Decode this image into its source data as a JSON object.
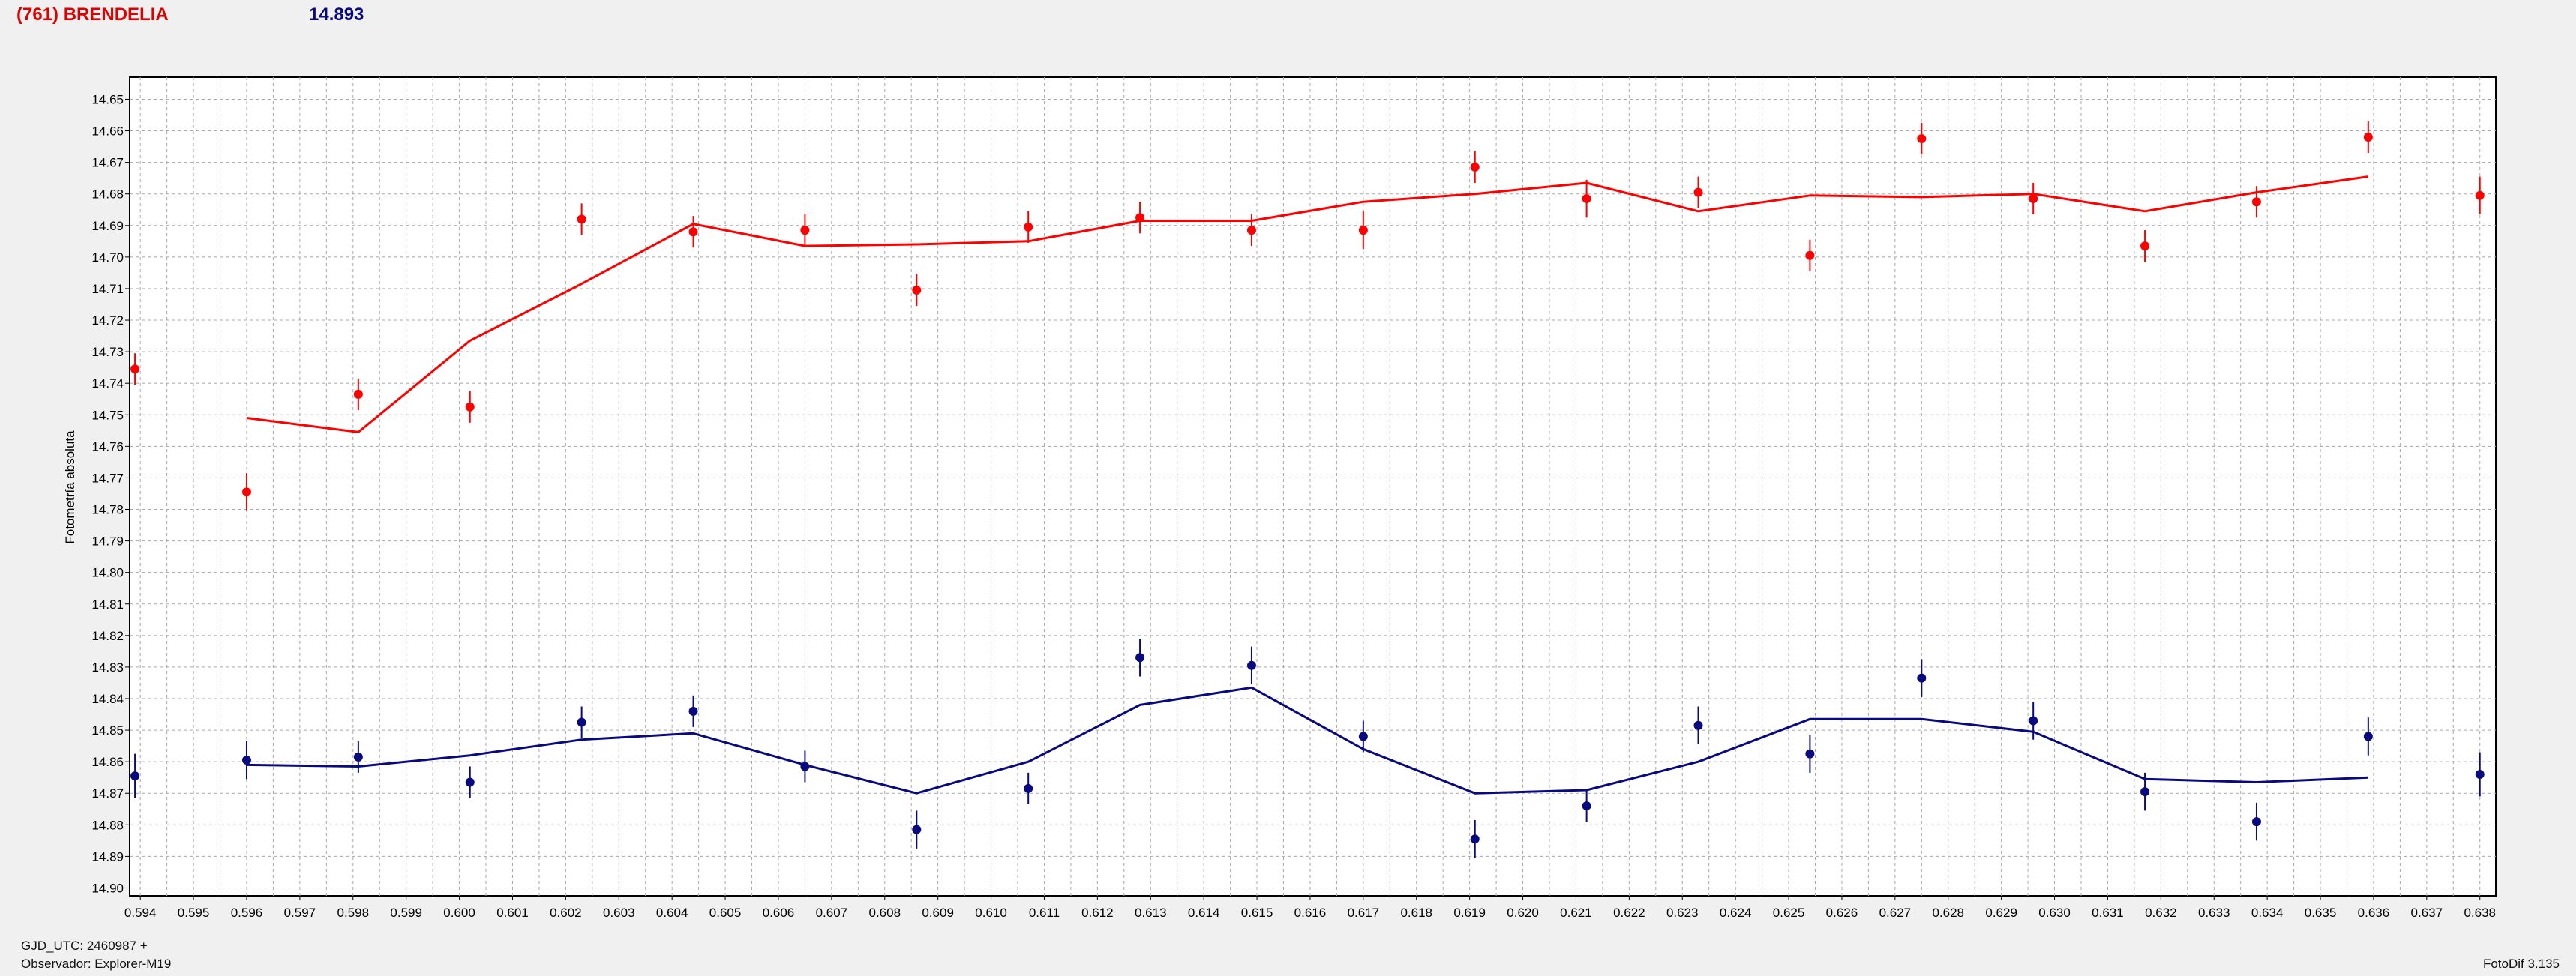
{
  "header": {
    "object_name": "(761) BRENDELIA",
    "object_color": "#e00000",
    "reference_mag": "14.893",
    "reference_color": "#0a0a80"
  },
  "footer": {
    "gjd": "GJD_UTC: 2460987 +",
    "observer": "Observador: Explorer-M19",
    "software": "FotoDif 3.135"
  },
  "chart_data": {
    "type": "scatter",
    "ylabel": "Fotometría absoluta",
    "xlabel": "",
    "xlim": [
      0.5938,
      0.6383
    ],
    "ylim": [
      14.643,
      14.9025
    ],
    "y_inverted": true,
    "grid": true,
    "x_ticks": [
      "0.594",
      "0.595",
      "0.596",
      "0.597",
      "0.598",
      "0.599",
      "0.600",
      "0.601",
      "0.602",
      "0.603",
      "0.604",
      "0.605",
      "0.606",
      "0.607",
      "0.608",
      "0.609",
      "0.610",
      "0.611",
      "0.612",
      "0.613",
      "0.614",
      "0.615",
      "0.616",
      "0.617",
      "0.618",
      "0.619",
      "0.620",
      "0.621",
      "0.622",
      "0.623",
      "0.624",
      "0.625",
      "0.626",
      "0.627",
      "0.628",
      "0.629",
      "0.630",
      "0.631",
      "0.632",
      "0.633",
      "0.634",
      "0.635",
      "0.636",
      "0.637",
      "0.638"
    ],
    "y_ticks": [
      "14.65",
      "14.66",
      "14.67",
      "14.68",
      "14.69",
      "14.70",
      "14.71",
      "14.72",
      "14.73",
      "14.74",
      "14.75",
      "14.76",
      "14.77",
      "14.78",
      "14.79",
      "14.80",
      "14.81",
      "14.82",
      "14.83",
      "14.84",
      "14.85",
      "14.86",
      "14.87",
      "14.88",
      "14.89",
      "14.90"
    ],
    "series": [
      {
        "color": "#ff0000",
        "points": [
          {
            "x": 0.5939,
            "y": 14.7355,
            "err": 0.005
          },
          {
            "x": 0.596,
            "y": 14.7745,
            "err": 0.006
          },
          {
            "x": 0.5981,
            "y": 14.7435,
            "err": 0.005
          },
          {
            "x": 0.6002,
            "y": 14.7475,
            "err": 0.005
          },
          {
            "x": 0.6023,
            "y": 14.688,
            "err": 0.005
          },
          {
            "x": 0.6044,
            "y": 14.692,
            "err": 0.005
          },
          {
            "x": 0.6065,
            "y": 14.6915,
            "err": 0.005
          },
          {
            "x": 0.6086,
            "y": 14.7105,
            "err": 0.005
          },
          {
            "x": 0.6107,
            "y": 14.6905,
            "err": 0.005
          },
          {
            "x": 0.6128,
            "y": 14.6875,
            "err": 0.005
          },
          {
            "x": 0.6149,
            "y": 14.6915,
            "err": 0.005
          },
          {
            "x": 0.617,
            "y": 14.6915,
            "err": 0.006
          },
          {
            "x": 0.6191,
            "y": 14.6715,
            "err": 0.005
          },
          {
            "x": 0.6212,
            "y": 14.6815,
            "err": 0.006
          },
          {
            "x": 0.6233,
            "y": 14.6795,
            "err": 0.005
          },
          {
            "x": 0.6254,
            "y": 14.6995,
            "err": 0.005
          },
          {
            "x": 0.6275,
            "y": 14.6625,
            "err": 0.005
          },
          {
            "x": 0.6296,
            "y": 14.6815,
            "err": 0.005
          },
          {
            "x": 0.6317,
            "y": 14.6965,
            "err": 0.005
          },
          {
            "x": 0.6338,
            "y": 14.6825,
            "err": 0.005
          },
          {
            "x": 0.6359,
            "y": 14.662,
            "err": 0.005
          },
          {
            "x": 0.638,
            "y": 14.6805,
            "err": 0.006
          }
        ],
        "fit_line": [
          {
            "x": 0.596,
            "y": 14.751
          },
          {
            "x": 0.5981,
            "y": 14.7555
          },
          {
            "x": 0.6002,
            "y": 14.7265
          },
          {
            "x": 0.6023,
            "y": 14.7085
          },
          {
            "x": 0.6044,
            "y": 14.6895
          },
          {
            "x": 0.6065,
            "y": 14.6965
          },
          {
            "x": 0.6086,
            "y": 14.696
          },
          {
            "x": 0.6107,
            "y": 14.695
          },
          {
            "x": 0.6128,
            "y": 14.6885
          },
          {
            "x": 0.6149,
            "y": 14.6885
          },
          {
            "x": 0.617,
            "y": 14.6825
          },
          {
            "x": 0.6191,
            "y": 14.68
          },
          {
            "x": 0.6212,
            "y": 14.6765
          },
          {
            "x": 0.6233,
            "y": 14.6855
          },
          {
            "x": 0.6254,
            "y": 14.6805
          },
          {
            "x": 0.6275,
            "y": 14.681
          },
          {
            "x": 0.6296,
            "y": 14.68
          },
          {
            "x": 0.6317,
            "y": 14.6855
          },
          {
            "x": 0.6338,
            "y": 14.6795
          },
          {
            "x": 0.6359,
            "y": 14.6745
          }
        ]
      },
      {
        "color": "#0a0a80",
        "points": [
          {
            "x": 0.5939,
            "y": 14.8645,
            "err": 0.007
          },
          {
            "x": 0.596,
            "y": 14.8595,
            "err": 0.006
          },
          {
            "x": 0.5981,
            "y": 14.8585,
            "err": 0.005
          },
          {
            "x": 0.6002,
            "y": 14.8665,
            "err": 0.005
          },
          {
            "x": 0.6023,
            "y": 14.8475,
            "err": 0.005
          },
          {
            "x": 0.6044,
            "y": 14.844,
            "err": 0.005
          },
          {
            "x": 0.6065,
            "y": 14.8615,
            "err": 0.005
          },
          {
            "x": 0.6086,
            "y": 14.8815,
            "err": 0.006
          },
          {
            "x": 0.6107,
            "y": 14.8685,
            "err": 0.005
          },
          {
            "x": 0.6128,
            "y": 14.827,
            "err": 0.006
          },
          {
            "x": 0.6149,
            "y": 14.8295,
            "err": 0.006
          },
          {
            "x": 0.617,
            "y": 14.852,
            "err": 0.005
          },
          {
            "x": 0.6191,
            "y": 14.8845,
            "err": 0.006
          },
          {
            "x": 0.6212,
            "y": 14.874,
            "err": 0.005
          },
          {
            "x": 0.6233,
            "y": 14.8485,
            "err": 0.006
          },
          {
            "x": 0.6254,
            "y": 14.8575,
            "err": 0.006
          },
          {
            "x": 0.6275,
            "y": 14.8335,
            "err": 0.006
          },
          {
            "x": 0.6296,
            "y": 14.847,
            "err": 0.006
          },
          {
            "x": 0.6317,
            "y": 14.8695,
            "err": 0.006
          },
          {
            "x": 0.6338,
            "y": 14.879,
            "err": 0.006
          },
          {
            "x": 0.6359,
            "y": 14.852,
            "err": 0.006
          },
          {
            "x": 0.638,
            "y": 14.864,
            "err": 0.007
          }
        ],
        "fit_line": [
          {
            "x": 0.596,
            "y": 14.861
          },
          {
            "x": 0.5981,
            "y": 14.8615
          },
          {
            "x": 0.6002,
            "y": 14.858
          },
          {
            "x": 0.6023,
            "y": 14.853
          },
          {
            "x": 0.6044,
            "y": 14.851
          },
          {
            "x": 0.6065,
            "y": 14.861
          },
          {
            "x": 0.6086,
            "y": 14.87
          },
          {
            "x": 0.6107,
            "y": 14.86
          },
          {
            "x": 0.6128,
            "y": 14.842
          },
          {
            "x": 0.6149,
            "y": 14.8365
          },
          {
            "x": 0.617,
            "y": 14.856
          },
          {
            "x": 0.6191,
            "y": 14.87
          },
          {
            "x": 0.6212,
            "y": 14.869
          },
          {
            "x": 0.6233,
            "y": 14.86
          },
          {
            "x": 0.6254,
            "y": 14.8465
          },
          {
            "x": 0.6275,
            "y": 14.8465
          },
          {
            "x": 0.6296,
            "y": 14.8505
          },
          {
            "x": 0.6317,
            "y": 14.8655
          },
          {
            "x": 0.6338,
            "y": 14.8665
          },
          {
            "x": 0.6359,
            "y": 14.865
          }
        ]
      }
    ]
  }
}
